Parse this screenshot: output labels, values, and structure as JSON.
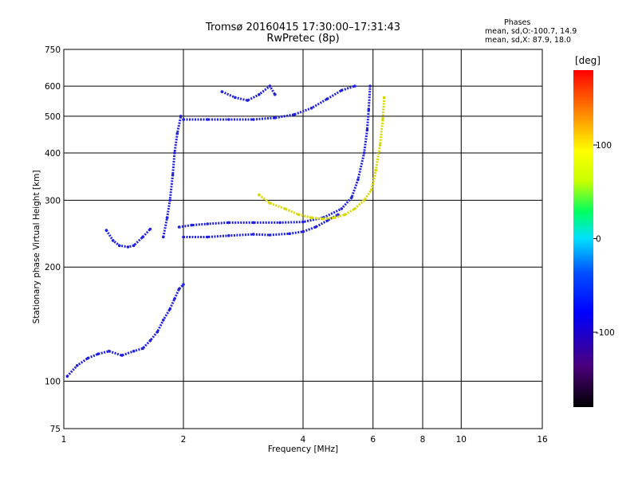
{
  "chart_data": {
    "type": "scatter",
    "title": "Tromsø 20160415 17:30:00–17:31:43",
    "subtitle": "RwPretec (8p)",
    "phases_header": "Phases",
    "phases_line1": "mean, sd,O:-100.7, 14.9",
    "phases_line2": "mean, sd,X:  87.9, 18.0",
    "xlabel": "Frequency [MHz]",
    "ylabel": "Stationary phase Virtual Height [km]",
    "x_scale": "log",
    "y_scale": "log",
    "xlim": [
      1,
      16
    ],
    "ylim": [
      75,
      750
    ],
    "x_ticks": [
      1,
      2,
      4,
      6,
      8,
      10,
      16
    ],
    "x_tick_labels": [
      "1",
      "2",
      "4",
      "6",
      "8",
      "10",
      "16"
    ],
    "y_ticks": [
      75,
      100,
      200,
      300,
      400,
      500,
      600,
      750
    ],
    "y_tick_labels": [
      "75",
      "100",
      "200",
      "300",
      "400",
      "500",
      "600",
      "750"
    ],
    "grid": true,
    "colorbar": {
      "label": "[deg]",
      "range": [
        -180,
        180
      ],
      "ticks": [
        100,
        0,
        -100
      ],
      "tick_labels": [
        "100",
        "0",
        "-100"
      ]
    },
    "traces": [
      {
        "name": "",
        "color": "#2020e0",
        "points": [
          [
            1.02,
            103
          ],
          [
            1.08,
            110
          ],
          [
            1.15,
            115
          ],
          [
            1.22,
            118
          ],
          [
            1.3,
            120
          ],
          [
            1.4,
            117
          ],
          [
            1.5,
            120
          ],
          [
            1.58,
            122
          ],
          [
            1.65,
            128
          ],
          [
            1.72,
            135
          ],
          [
            1.78,
            145
          ],
          [
            1.85,
            155
          ],
          [
            1.9,
            165
          ],
          [
            1.95,
            175
          ],
          [
            2.0,
            180
          ]
        ]
      },
      {
        "name": "",
        "color": "#2020e0",
        "points": [
          [
            1.28,
            250
          ],
          [
            1.33,
            235
          ],
          [
            1.38,
            228
          ],
          [
            1.45,
            226
          ],
          [
            1.5,
            228
          ],
          [
            1.58,
            240
          ],
          [
            1.65,
            252
          ]
        ]
      },
      {
        "name": "",
        "color": "#2020e0",
        "points": [
          [
            1.78,
            240
          ],
          [
            1.82,
            270
          ],
          [
            1.85,
            300
          ],
          [
            1.88,
            350
          ],
          [
            1.9,
            400
          ],
          [
            1.93,
            450
          ],
          [
            1.97,
            500
          ]
        ]
      },
      {
        "name": "",
        "color": "#2020e0",
        "points": [
          [
            1.95,
            255
          ],
          [
            2.1,
            258
          ],
          [
            2.3,
            260
          ],
          [
            2.6,
            262
          ],
          [
            3.0,
            262
          ],
          [
            3.5,
            262
          ],
          [
            4.0,
            263
          ],
          [
            4.5,
            270
          ],
          [
            5.0,
            285
          ],
          [
            5.3,
            305
          ],
          [
            5.5,
            340
          ],
          [
            5.7,
            400
          ],
          [
            5.8,
            460
          ],
          [
            5.85,
            520
          ],
          [
            5.9,
            600
          ]
        ]
      },
      {
        "name": "",
        "color": "#2020e0",
        "points": [
          [
            2.0,
            240
          ],
          [
            2.3,
            240
          ],
          [
            2.6,
            242
          ],
          [
            3.0,
            244
          ],
          [
            3.3,
            243
          ],
          [
            3.7,
            245
          ],
          [
            4.0,
            248
          ],
          [
            4.3,
            255
          ],
          [
            4.6,
            265
          ],
          [
            4.9,
            275
          ]
        ]
      },
      {
        "name": "",
        "color": "#2020e0",
        "points": [
          [
            2.0,
            490
          ],
          [
            2.3,
            490
          ],
          [
            2.6,
            490
          ],
          [
            3.0,
            490
          ],
          [
            3.4,
            495
          ],
          [
            3.8,
            505
          ],
          [
            4.2,
            525
          ],
          [
            4.6,
            555
          ],
          [
            5.0,
            585
          ],
          [
            5.4,
            600
          ]
        ]
      },
      {
        "name": "",
        "color": "#2020e0",
        "points": [
          [
            2.5,
            580
          ],
          [
            2.7,
            560
          ],
          [
            2.9,
            550
          ],
          [
            3.1,
            570
          ],
          [
            3.3,
            600
          ],
          [
            3.4,
            570
          ]
        ]
      },
      {
        "name": "",
        "color": "#d8d800",
        "points": [
          [
            3.1,
            310
          ],
          [
            3.3,
            295
          ],
          [
            3.6,
            285
          ],
          [
            3.9,
            275
          ],
          [
            4.2,
            270
          ],
          [
            4.5,
            268
          ],
          [
            4.8,
            270
          ],
          [
            5.1,
            275
          ],
          [
            5.4,
            285
          ],
          [
            5.7,
            300
          ],
          [
            5.95,
            320
          ],
          [
            6.1,
            360
          ],
          [
            6.25,
            420
          ],
          [
            6.35,
            490
          ],
          [
            6.4,
            560
          ]
        ]
      }
    ]
  }
}
